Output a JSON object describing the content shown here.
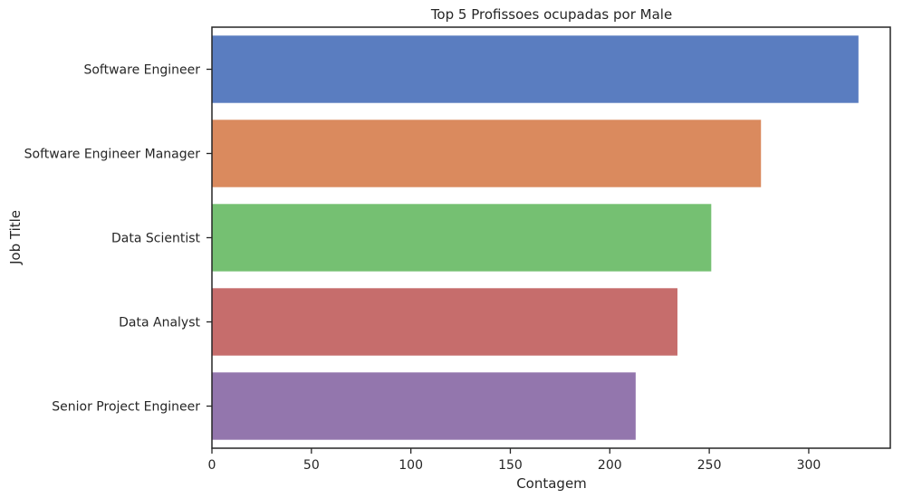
{
  "chart_data": {
    "type": "bar",
    "orientation": "horizontal",
    "title": "Top 5 Profissoes ocupadas por Male",
    "xlabel": "Contagem",
    "ylabel": "Job Title",
    "categories": [
      "Software Engineer",
      "Software Engineer Manager",
      "Data Scientist",
      "Data Analyst",
      "Senior Project Engineer"
    ],
    "values": [
      325,
      276,
      251,
      234,
      213
    ],
    "colors": [
      "#5a7dc0",
      "#da8a5e",
      "#75c072",
      "#c66d6c",
      "#9376ad"
    ],
    "xlim": [
      0,
      341
    ],
    "xticks": [
      0,
      50,
      100,
      150,
      200,
      250,
      300
    ],
    "grid": false,
    "legend": "none"
  }
}
